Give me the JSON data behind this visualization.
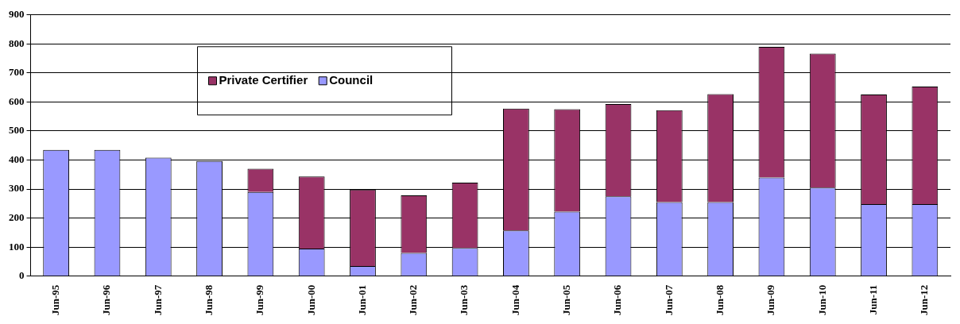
{
  "chart_data": {
    "type": "bar",
    "stacked": true,
    "categories": [
      "Jun-95",
      "Jun-96",
      "Jun-97",
      "Jun-98",
      "Jun-99",
      "Jun-00",
      "Jun-01",
      "Jun-02",
      "Jun-03",
      "Jun-04",
      "Jun-05",
      "Jun-06",
      "Jun-07",
      "Jun-08",
      "Jun-09",
      "Jun-10",
      "Jun-11",
      "Jun-12"
    ],
    "series": [
      {
        "name": "Council",
        "color": "#9999ff",
        "values": [
          435,
          435,
          408,
          397,
          290,
          95,
          35,
          80,
          97,
          157,
          222,
          275,
          255,
          255,
          340,
          305,
          248,
          248
        ]
      },
      {
        "name": "Private Certifier",
        "color": "#993366",
        "values": [
          0,
          0,
          0,
          0,
          80,
          248,
          263,
          198,
          225,
          420,
          353,
          318,
          317,
          372,
          450,
          462,
          378,
          405
        ]
      }
    ],
    "ylim": [
      0,
      900
    ],
    "yticks": [
      0,
      100,
      200,
      300,
      400,
      500,
      600,
      700,
      800,
      900
    ],
    "grid": "y",
    "legend": "top left"
  }
}
